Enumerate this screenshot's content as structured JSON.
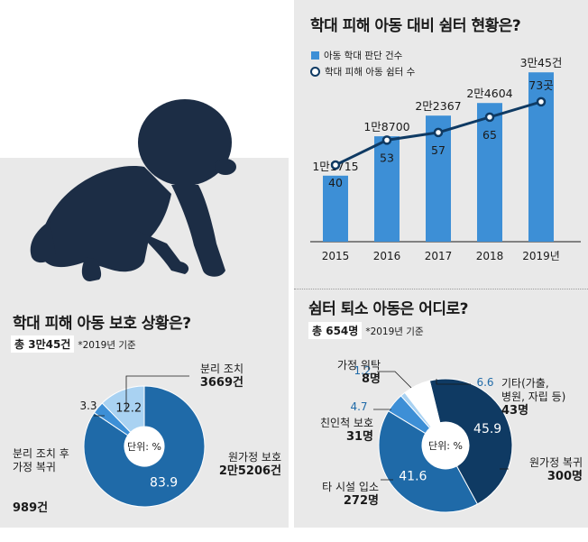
{
  "left": {
    "title": "학대 피해 아동 보호 상황은?",
    "total": "총 3만45건",
    "note": "*2019년 기준",
    "center_label": "단위: %",
    "labels": {
      "separation": {
        "name": "분리 조치",
        "count": "3669건"
      },
      "return_home": {
        "name": "분리 조치 후\n가정 복귀",
        "count": "989건"
      },
      "original_home": {
        "name": "원가정 보호",
        "count": "2만5206건"
      }
    }
  },
  "right_top": {
    "title": "학대 피해 아동 대비 쉼터 현황은?",
    "legend_bar": "아동 학대 판단 건수",
    "legend_line": "학대 피해 아동 쉼터 수"
  },
  "right_bottom": {
    "title": "쉼터 퇴소 아동은 어디로?",
    "total": "총 654명",
    "note": "*2019년 기준",
    "center_label": "단위: %",
    "labels": {
      "foster": {
        "name": "가정 위탁",
        "count": "8명"
      },
      "relative": {
        "name": "친인척 보호",
        "count": "31명"
      },
      "facility": {
        "name": "타 시설 입소",
        "count": "272명"
      },
      "return_home": {
        "name": "원가정 복귀",
        "count": "300명"
      },
      "other": {
        "name": "기타(가출,\n병원, 자립 등)",
        "count": "43명"
      }
    }
  },
  "colors": {
    "dark": "#0f3a63",
    "mid": "#1f6aa8",
    "blue": "#3d8fd6",
    "light": "#a9d2f2",
    "white": "#ffffff"
  },
  "chart_data": [
    {
      "type": "pie",
      "title": "학대 피해 아동 보호 상황은?",
      "unit": "%",
      "slices": [
        {
          "name": "원가정 보호",
          "value": 83.9,
          "label": "83.9"
        },
        {
          "name": "분리 조치 후 가정 복귀",
          "value": 3.3,
          "label": "3.3"
        },
        {
          "name": "분리 조치",
          "value": 12.2,
          "label": "12.2"
        }
      ]
    },
    {
      "type": "bar",
      "title": "학대 피해 아동 대비 쉼터 현황은?",
      "categories": [
        "2015",
        "2016",
        "2017",
        "2018",
        "2019년"
      ],
      "series": [
        {
          "name": "아동 학대 판단 건수",
          "values": [
            11715,
            18700,
            22367,
            24604,
            30045
          ],
          "labels": [
            "1만1715",
            "1만8700",
            "2만2367",
            "2만4604",
            "3만45건"
          ]
        },
        {
          "name": "학대 피해 아동 쉼터 수",
          "type": "line",
          "values": [
            40,
            53,
            57,
            65,
            73
          ],
          "labels": [
            "40",
            "53",
            "57",
            "65",
            "73곳"
          ]
        }
      ],
      "ylim": [
        0,
        32000
      ],
      "ylim2": [
        0,
        80
      ]
    },
    {
      "type": "pie",
      "title": "쉼터 퇴소 아동은 어디로?",
      "unit": "%",
      "slices": [
        {
          "name": "원가정 복귀",
          "value": 45.9,
          "label": "45.9"
        },
        {
          "name": "타 시설 입소",
          "value": 41.6,
          "label": "41.6"
        },
        {
          "name": "친인척 보호",
          "value": 4.7,
          "label": "4.7"
        },
        {
          "name": "가정 위탁",
          "value": 1.2,
          "label": "1.2"
        },
        {
          "name": "기타(가출, 병원, 자립 등)",
          "value": 6.6,
          "label": "6.6"
        }
      ]
    }
  ]
}
